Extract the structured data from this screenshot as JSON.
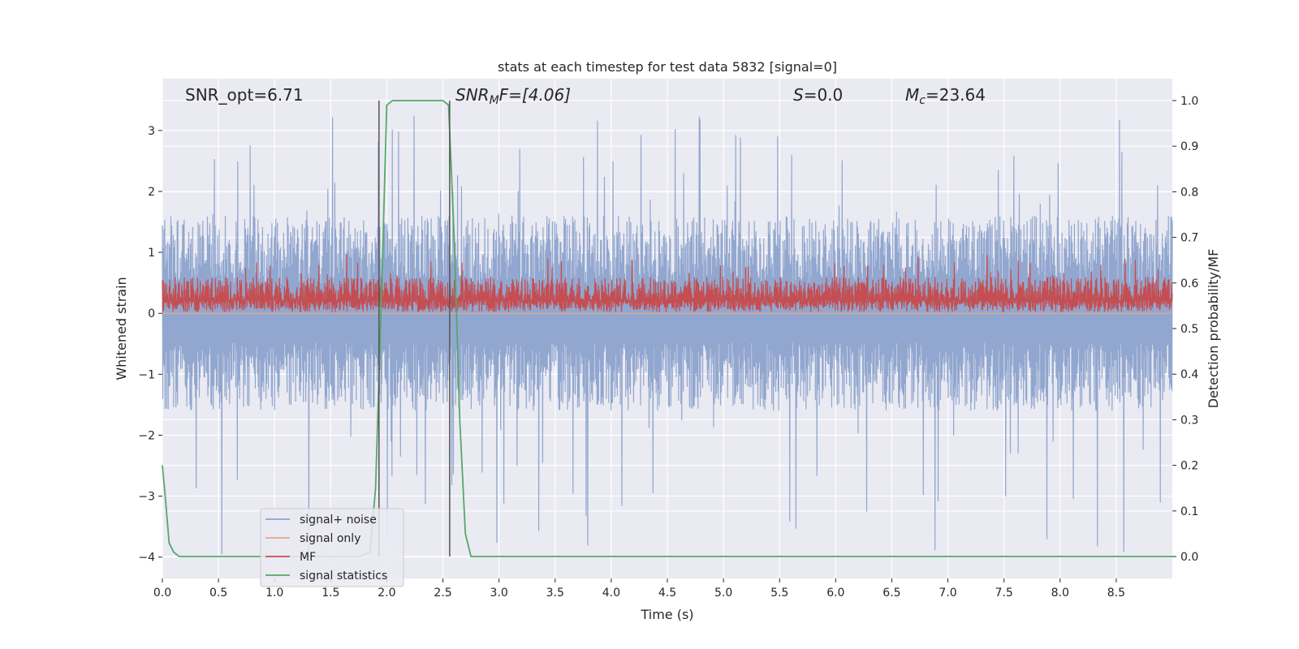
{
  "chart_data": {
    "type": "line",
    "title": "stats at each timestep for test data 5832 [signal=0]",
    "xlabel": "Time (s)",
    "ylabel": "Whitened strain",
    "y2label": "Detection probability/MF",
    "xlim": [
      0.0,
      9.0
    ],
    "ylim": [
      -4.35,
      3.85
    ],
    "y2lim": [
      -0.048,
      1.048
    ],
    "xticks": [
      0.0,
      0.5,
      1.0,
      1.5,
      2.0,
      2.5,
      3.0,
      3.5,
      4.0,
      4.5,
      5.0,
      5.5,
      6.0,
      6.5,
      7.0,
      7.5,
      8.0,
      8.5
    ],
    "xtick_labels": [
      "0.0",
      "0.5",
      "1.0",
      "1.5",
      "2.0",
      "2.5",
      "3.0",
      "3.5",
      "4.0",
      "4.5",
      "5.0",
      "5.5",
      "6.0",
      "6.5",
      "7.0",
      "7.5",
      "8.0",
      "8.5"
    ],
    "yticks": [
      -4,
      -3,
      -2,
      -1,
      0,
      1,
      2,
      3
    ],
    "ytick_labels": [
      "−4",
      "−3",
      "−2",
      "−1",
      "0",
      "1",
      "2",
      "3"
    ],
    "y2ticks": [
      0.0,
      0.1,
      0.2,
      0.3,
      0.4,
      0.5,
      0.6,
      0.7,
      0.8,
      0.9,
      1.0
    ],
    "y2tick_labels": [
      "0.0",
      "0.1",
      "0.2",
      "0.3",
      "0.4",
      "0.5",
      "0.6",
      "0.7",
      "0.8",
      "0.9",
      "1.0"
    ],
    "grid": true,
    "legend_position": "lower-left",
    "series": [
      {
        "name": "signal+ noise",
        "axis": "left",
        "color": "#8da3cc",
        "noise": {
          "center": 0.0,
          "typical_low": -1.6,
          "typical_high": 1.6,
          "peak_max": 3.38,
          "peak_min": -4.02
        }
      },
      {
        "name": "signal only",
        "axis": "left",
        "color": "#e8a888",
        "x": [
          0.0,
          9.0
        ],
        "values": [
          0.0,
          0.0
        ]
      },
      {
        "name": "MF",
        "axis": "left",
        "color": "#c44e52",
        "noise": {
          "base": 0.02,
          "typical_high": 0.6,
          "peak_max": 1.0
        }
      },
      {
        "name": "signal statistics",
        "axis": "right",
        "color": "#55a868",
        "x": [
          0.0,
          0.03,
          0.06,
          0.1,
          0.15,
          0.25,
          0.5,
          1.0,
          1.5,
          1.75,
          1.85,
          1.9,
          1.95,
          2.0,
          2.05,
          2.2,
          2.5,
          2.55,
          2.6,
          2.65,
          2.7,
          2.75,
          2.85,
          3.5,
          9.0
        ],
        "values": [
          0.2,
          0.12,
          0.03,
          0.01,
          0.0,
          0.0,
          0.0,
          0.0,
          0.0,
          0.0,
          0.01,
          0.15,
          0.55,
          0.99,
          1.0,
          1.0,
          1.0,
          0.99,
          0.7,
          0.3,
          0.05,
          0.0,
          0.0,
          0.0,
          0.0
        ]
      }
    ],
    "vlines": [
      1.93,
      2.56
    ],
    "annotations": [
      {
        "text": "SNR_opt=6.71"
      },
      {
        "text": "SNR_MF=[4.06]"
      },
      {
        "text": "S=0.0"
      },
      {
        "text": "M_c=23.64"
      }
    ],
    "annotation_parts": {
      "snr_opt": "SNR_opt=6.71",
      "snr_mf_main": "SNR",
      "snr_mf_sub": "M",
      "snr_mf_rest": "F=[4.06]",
      "s_main": "S",
      "s_rest": "=0.0",
      "mc_main": "M",
      "mc_sub": "c",
      "mc_rest": "=23.64"
    }
  },
  "colors": {
    "plot_background": "#eaeaf2",
    "grid": "#ffffff",
    "text": "#262626",
    "vline": "#555555"
  }
}
